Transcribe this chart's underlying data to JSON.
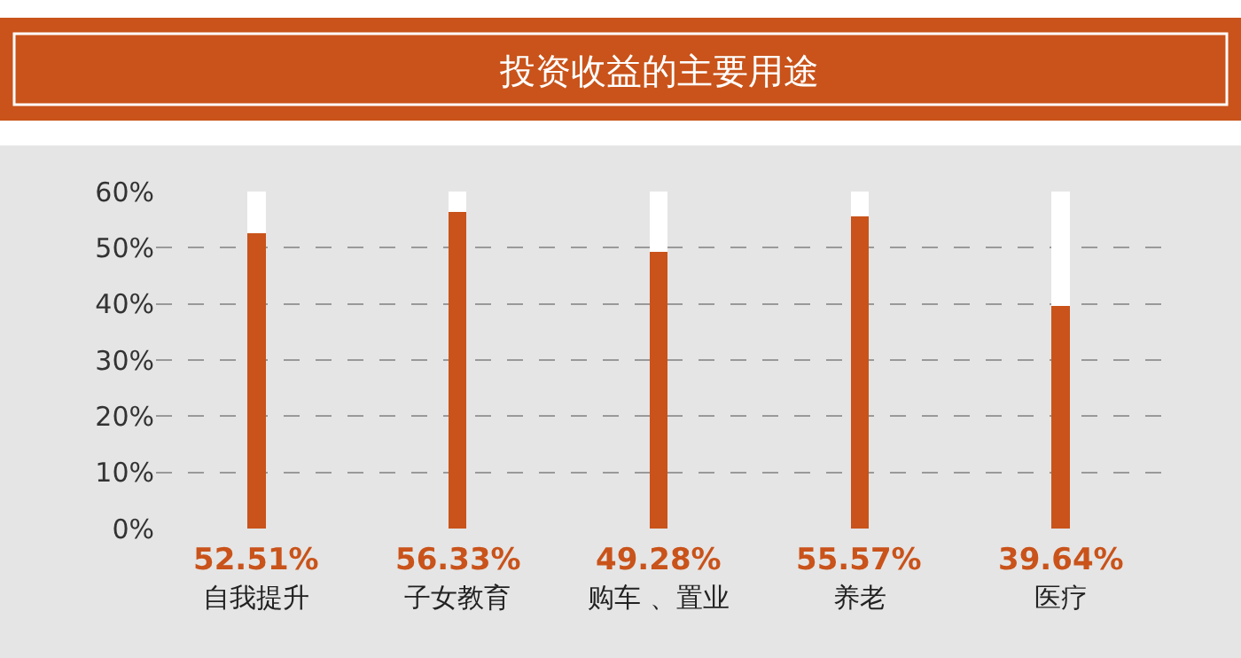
{
  "chart_data": {
    "type": "bar",
    "title": "投资收益的主要用途",
    "categories": [
      "自我提升",
      "子女教育",
      "购车 、置业",
      "养老",
      "医疗"
    ],
    "series": [
      {
        "color": "#c9531a",
        "values": [
          52.51,
          56.33,
          49.28,
          55.57,
          39.64
        ],
        "value_labels": [
          "52.51%",
          "56.33%",
          "49.28%",
          "55.57%",
          "39.64%"
        ]
      },
      {
        "color": "#ffffff",
        "values": [
          7.5,
          3.7,
          10.7,
          4.4,
          20.4
        ]
      }
    ],
    "stacked": true,
    "ylim": [
      0,
      60
    ],
    "yticks": [
      {
        "value": 0,
        "label": "0%"
      },
      {
        "value": 10,
        "label": "10%"
      },
      {
        "value": 20,
        "label": "20%"
      },
      {
        "value": 30,
        "label": "30%"
      },
      {
        "value": 40,
        "label": "40%"
      },
      {
        "value": 50,
        "label": "50%"
      },
      {
        "value": 60,
        "label": "60%"
      }
    ],
    "grid": "y"
  }
}
